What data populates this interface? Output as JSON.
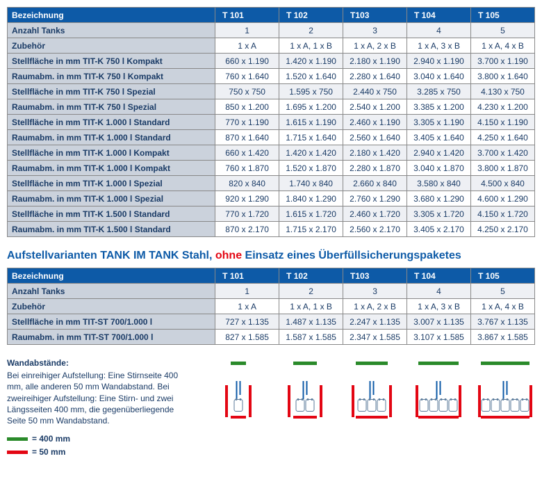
{
  "table1": {
    "header_label": "Bezeichnung",
    "cols": [
      "T 101",
      "T 102",
      "T103",
      "T 104",
      "T 105"
    ],
    "rows": [
      {
        "label": "Anzahl Tanks",
        "vals": [
          "1",
          "2",
          "3",
          "4",
          "5"
        ]
      },
      {
        "label": "Zubehör",
        "vals": [
          "1 x A",
          "1 x A, 1 x B",
          "1 x A, 2 x B",
          "1 x A, 3 x B",
          "1 x A, 4 x B"
        ]
      },
      {
        "label": "Stellfläche in mm TIT-K 750 l Kompakt",
        "vals": [
          "660 x 1.190",
          "1.420 x 1.190",
          "2.180 x 1.190",
          "2.940 x 1.190",
          "3.700 x 1.190"
        ]
      },
      {
        "label": "Raumabm. in mm TIT-K 750 l Kompakt",
        "vals": [
          "760 x 1.640",
          "1.520 x 1.640",
          "2.280 x 1.640",
          "3.040 x 1.640",
          "3.800 x 1.640"
        ]
      },
      {
        "label": "Stellfläche in mm TIT-K 750 l Spezial",
        "vals": [
          "750 x   750",
          "1.595 x   750",
          "2.440 x   750",
          "3.285 x   750",
          "4.130 x   750"
        ]
      },
      {
        "label": "Raumabm. in mm TIT-K 750 l Spezial",
        "vals": [
          "850 x 1.200",
          "1.695 x 1.200",
          "2.540 x 1.200",
          "3.385 x 1.200",
          "4.230 x 1.200"
        ]
      },
      {
        "label": "Stellfläche in mm TIT-K 1.000 l Standard",
        "vals": [
          "770 x 1.190",
          "1.615 x 1.190",
          "2.460 x 1.190",
          "3.305 x 1.190",
          "4.150 x 1.190"
        ]
      },
      {
        "label": "Raumabm. in mm TIT-K 1.000 l Standard",
        "vals": [
          "870 x 1.640",
          "1.715 x 1.640",
          "2.560 x 1.640",
          "3.405 x 1.640",
          "4.250 x 1.640"
        ]
      },
      {
        "label": "Stellfläche in mm TIT-K 1.000 l Kompakt",
        "vals": [
          "660 x 1.420",
          "1.420 x 1.420",
          "2.180 x 1.420",
          "2.940 x 1.420",
          "3.700 x 1.420"
        ]
      },
      {
        "label": "Raumabm. in mm TIT-K 1.000 l Kompakt",
        "vals": [
          "760 x 1.870",
          "1.520 x 1.870",
          "2.280 x 1.870",
          "3.040 x 1.870",
          "3.800 x 1.870"
        ]
      },
      {
        "label": "Stellfläche in mm TIT-K 1.000 l Spezial",
        "vals": [
          "820 x   840",
          "1.740 x   840",
          "2.660 x   840",
          "3.580 x   840",
          "4.500 x   840"
        ]
      },
      {
        "label": "Raumabm. in mm TIT-K 1.000 l Spezial",
        "vals": [
          "920 x 1.290",
          "1.840 x 1.290",
          "2.760 x 1.290",
          "3.680 x 1.290",
          "4.600 x 1.290"
        ]
      },
      {
        "label": "Stellfläche in mm TIT-K 1.500 l Standard",
        "vals": [
          "770 x 1.720",
          "1.615 x 1.720",
          "2.460 x 1.720",
          "3.305 x 1.720",
          "4.150 x 1.720"
        ]
      },
      {
        "label": "Raumabm. in mm TIT-K 1.500 l Standard",
        "vals": [
          "870 x 2.170",
          "1.715 x 2.170",
          "2.560 x 2.170",
          "3.405 x 2.170",
          "4.250 x 2.170"
        ]
      }
    ]
  },
  "section_title_pre": "Aufstellvarianten TANK IM TANK Stahl, ",
  "section_title_ohne": "ohne",
  "section_title_post": " Einsatz eines Überfüllsicherungspaketes",
  "table2": {
    "header_label": "Bezeichnung",
    "cols": [
      "T 101",
      "T 102",
      "T103",
      "T 104",
      "T 105"
    ],
    "rows": [
      {
        "label": "Anzahl Tanks",
        "vals": [
          "1",
          "2",
          "3",
          "4",
          "5"
        ]
      },
      {
        "label": "Zubehör",
        "vals": [
          "1 x A",
          "1 x A, 1 x B",
          "1 x A, 2 x B",
          "1 x A, 3 x B",
          "1 x A, 4 x B"
        ]
      },
      {
        "label": "Stellfläche in mm TIT-ST 700/1.000 l",
        "vals": [
          "727 x 1.135",
          "1.487 x 1.135",
          "2.247 x 1.135",
          "3.007 x 1.135",
          "3.767 x 1.135"
        ]
      },
      {
        "label": "Raumabm. in mm TIT-ST 700/1.000 l",
        "vals": [
          "827 x 1.585",
          "1.587 x 1.585",
          "2.347 x 1.585",
          "3.107 x 1.585",
          "3.867 x 1.585"
        ]
      }
    ]
  },
  "wand": {
    "title": "Wandabstände:",
    "text": "Bei einreihiger Aufstellung: Eine Stirnseite 400 mm, alle anderen 50 mm Wandabstand. Bei zweireihiger Aufstellung: Eine Stirn- und zwei Längsseiten 400 mm, die gegenüber­liegende Seite 50 mm Wandabstand."
  },
  "legend": {
    "green": "= 400 mm",
    "red": "=   50 mm"
  },
  "diagrams": [
    {
      "tanks": 1,
      "greenW": 22,
      "redW": 22,
      "redL": 24,
      "redR": 58
    },
    {
      "tanks": 2,
      "greenW": 34,
      "redW": 34,
      "redL": 18,
      "redR": 64
    },
    {
      "tanks": 3,
      "greenW": 46,
      "redW": 46,
      "redL": 14,
      "redR": 68
    },
    {
      "tanks": 4,
      "greenW": 58,
      "redW": 58,
      "redL": 10,
      "redR": 72
    },
    {
      "tanks": 5,
      "greenW": 70,
      "redW": 70,
      "redL": 4,
      "redR": 78
    }
  ],
  "colors": {
    "header_bg": "#0d5aa7",
    "row_bg": "#cbd2dc",
    "text": "#1a3b66",
    "green": "#2a8a2a",
    "red": "#e30613"
  }
}
